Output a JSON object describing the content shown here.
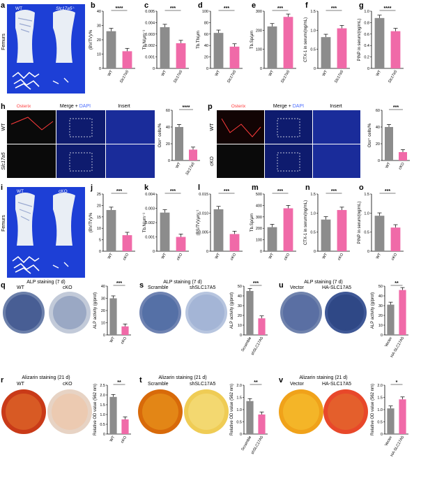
{
  "colors": {
    "wt": "#8c8c8c",
    "ko": "#f06aa8",
    "osterix": "#ff3b3b",
    "dapi": "#4a6cff"
  },
  "panels": {
    "a": {
      "letter": "a",
      "wt": "WT",
      "ko": "Slc17a5",
      "ko_sup": "-/-",
      "side": "Femurs"
    },
    "h": {
      "letter": "h",
      "title_osterix": "Osterix",
      "title_merge": "Merge + ",
      "title_dapi": "DAPI",
      "title_insert": "Insert",
      "row1": "WT",
      "row2": "Slc17a5"
    },
    "p": {
      "letter": "p",
      "title_osterix": "Osterix",
      "title_merge": "Merge + ",
      "title_dapi": "DAPI",
      "title_insert": "Insert",
      "row1": "WT",
      "row2": "cKO"
    },
    "i": {
      "letter": "i",
      "wt": "WT",
      "ko": "cKO",
      "side": "Femurs"
    },
    "q": {
      "letter": "q",
      "title": "ALP staining (7 d)",
      "left": "WT",
      "right": "cKO"
    },
    "s": {
      "letter": "s",
      "title": "ALP staining (7 d)",
      "left": "Scramble",
      "right": "shSLC17A5"
    },
    "u": {
      "letter": "u",
      "title": "ALP staining (7 d)",
      "left": "Vector",
      "right": "HA-SLC17A5"
    },
    "r": {
      "letter": "r",
      "title": "Alizarin staining (21 d)",
      "left": "WT",
      "right": "cKO"
    },
    "t": {
      "letter": "t",
      "title": "Alizarin staining (21 d)",
      "left": "Scramble",
      "right": "shSLC17A5"
    },
    "v": {
      "letter": "v",
      "title": "Alizarin staining (21 d)",
      "left": "Vector",
      "right": "HA-SLC17A5"
    }
  },
  "chart_data": [
    {
      "id": "b",
      "type": "bar",
      "categories": [
        "WT",
        "Slc17a5"
      ],
      "values": [
        26,
        12
      ],
      "ylim": [
        0,
        40
      ],
      "ticks": [
        "0",
        "10",
        "20",
        "30",
        "40"
      ],
      "ylabel": "(BV/TV)/%",
      "sig": "****"
    },
    {
      "id": "c",
      "type": "bar",
      "categories": [
        "WT",
        "Slc17a5"
      ],
      "values": [
        0.0036,
        0.0022
      ],
      "ylim": [
        0,
        0.005
      ],
      "ticks": [
        "0",
        "0.001",
        "0.002",
        "0.003",
        "0.004",
        "0.005"
      ],
      "ylabel": "Tb.N/μm⁻¹",
      "sig": "***"
    },
    {
      "id": "d",
      "type": "bar",
      "categories": [
        "WT",
        "Slc17a5"
      ],
      "values": [
        62,
        38
      ],
      "ylim": [
        0,
        100
      ],
      "ticks": [
        "0",
        "20",
        "40",
        "60",
        "80",
        "100"
      ],
      "ylabel": "Tb.Th/μm",
      "sig": "***"
    },
    {
      "id": "e",
      "type": "bar",
      "categories": [
        "WT",
        "Slc17a5"
      ],
      "values": [
        220,
        270
      ],
      "ylim": [
        0,
        300
      ],
      "ticks": [
        "0",
        "100",
        "200",
        "300"
      ],
      "ylabel": "Tb.Sp/μm",
      "sig": "***"
    },
    {
      "id": "f",
      "type": "bar",
      "categories": [
        "WT",
        "Slc17a5"
      ],
      "values": [
        0.82,
        1.05
      ],
      "ylim": [
        0,
        1.5
      ],
      "ticks": [
        "0",
        "0.5",
        "1.0",
        "1.5"
      ],
      "ylabel": "CTX-1 in serum/(ng/mL)",
      "sig": "***"
    },
    {
      "id": "g",
      "type": "bar",
      "categories": [
        "WT",
        "Slc17a5"
      ],
      "values": [
        0.88,
        0.65
      ],
      "ylim": [
        0,
        1.0
      ],
      "ticks": [
        "0",
        "0.2",
        "0.4",
        "0.6",
        "0.8",
        "1.0"
      ],
      "ylabel": "PINP in serum/(ng/mL)",
      "sig": "****"
    },
    {
      "id": "h2",
      "type": "bar",
      "categories": [
        "WT",
        "Slc17a5"
      ],
      "values": [
        40,
        13
      ],
      "ylim": [
        0,
        60
      ],
      "ticks": [
        "0",
        "20",
        "40",
        "60"
      ],
      "ylabel": "Osx⁺ cells/%",
      "sig": "****"
    },
    {
      "id": "p2",
      "type": "bar",
      "categories": [
        "WT",
        "cKO"
      ],
      "values": [
        40,
        10
      ],
      "ylim": [
        0,
        60
      ],
      "ticks": [
        "0",
        "20",
        "40",
        "60"
      ],
      "ylabel": "Osx⁺ cells/%",
      "sig": "***"
    },
    {
      "id": "j",
      "type": "bar",
      "categories": [
        "WT",
        "cKO"
      ],
      "values": [
        18,
        7
      ],
      "ylim": [
        0,
        25
      ],
      "ticks": [
        "0",
        "5",
        "10",
        "15",
        "20",
        "25"
      ],
      "ylabel": "(BV/TV)/%",
      "sig": "***"
    },
    {
      "id": "k",
      "type": "bar",
      "categories": [
        "WT",
        "cKO"
      ],
      "values": [
        0.0027,
        0.001
      ],
      "ylim": [
        0,
        0.004
      ],
      "ticks": [
        "0",
        "0.001",
        "0.002",
        "0.003",
        "0.004"
      ],
      "ylabel": "Tb.N/μm⁻¹",
      "sig": "***"
    },
    {
      "id": "l",
      "type": "bar",
      "categories": [
        "WT",
        "cKO"
      ],
      "values": [
        0.011,
        0.0045
      ],
      "ylim": [
        0,
        0.015
      ],
      "ticks": [
        "0",
        "0.005",
        "0.010",
        "0.015"
      ],
      "ylabel": "(BS/TV)/μm⁻¹",
      "sig": "***"
    },
    {
      "id": "m",
      "type": "bar",
      "categories": [
        "WT",
        "cKO"
      ],
      "values": [
        210,
        375
      ],
      "ylim": [
        0,
        500
      ],
      "ticks": [
        "0",
        "100",
        "200",
        "300",
        "400",
        "500"
      ],
      "ylabel": "Tb.Sp/μm",
      "sig": "***"
    },
    {
      "id": "n",
      "type": "bar",
      "categories": [
        "WT",
        "cKO"
      ],
      "values": [
        0.83,
        1.08
      ],
      "ylim": [
        0,
        1.5
      ],
      "ticks": [
        "0",
        "0.5",
        "1.0",
        "1.5"
      ],
      "ylabel": "CTX-1 in serum/(ng/mL)",
      "sig": "***"
    },
    {
      "id": "o",
      "type": "bar",
      "categories": [
        "WT",
        "cKO"
      ],
      "values": [
        0.93,
        0.62
      ],
      "ylim": [
        0,
        1.5
      ],
      "ticks": [
        "0",
        "0.5",
        "1.0",
        "1.5"
      ],
      "ylabel": "PINP in serum/(ng/mL)",
      "sig": "***"
    },
    {
      "id": "q2",
      "type": "bar",
      "categories": [
        "WT",
        "cKO"
      ],
      "values": [
        30,
        7
      ],
      "ylim": [
        0,
        40
      ],
      "ticks": [
        "0",
        "10",
        "20",
        "30",
        "40"
      ],
      "ylabel": "ALP activity (g/prot)",
      "sig": "***"
    },
    {
      "id": "s2",
      "type": "bar",
      "categories": [
        "Scramble",
        "shSLC17A5"
      ],
      "values": [
        45,
        17
      ],
      "ylim": [
        0,
        50
      ],
      "ticks": [
        "0",
        "10",
        "20",
        "30",
        "40",
        "50"
      ],
      "ylabel": "ALP activity (g/prot)",
      "sig": "***"
    },
    {
      "id": "u2",
      "type": "bar",
      "categories": [
        "Vector",
        "HA-SLC17A5"
      ],
      "values": [
        31,
        46
      ],
      "ylim": [
        0,
        50
      ],
      "ticks": [
        "0",
        "10",
        "20",
        "30",
        "40",
        "50"
      ],
      "ylabel": "ALP activity (g/prot)",
      "sig": "**"
    },
    {
      "id": "r2",
      "type": "bar",
      "categories": [
        "WT",
        "cKO"
      ],
      "values": [
        1.9,
        0.75
      ],
      "ylim": [
        0,
        2.5
      ],
      "ticks": [
        "0",
        "0.5",
        "1.0",
        "1.5",
        "2.0",
        "2.5"
      ],
      "ylabel": "Relative OD value (562 nm)",
      "sig": "**"
    },
    {
      "id": "t2",
      "type": "bar",
      "categories": [
        "Scramble",
        "shSLC17A5"
      ],
      "values": [
        1.35,
        0.8
      ],
      "ylim": [
        0,
        2.0
      ],
      "ticks": [
        "0",
        "0.5",
        "1.0",
        "1.5",
        "2.0"
      ],
      "ylabel": "Relative OD value (562 nm)",
      "sig": "**"
    },
    {
      "id": "v2",
      "type": "bar",
      "categories": [
        "Vector",
        "HA-SLC17A5"
      ],
      "values": [
        1.05,
        1.42
      ],
      "ylim": [
        0,
        2.0
      ],
      "ticks": [
        "0",
        "0.5",
        "1.0",
        "1.5",
        "2.0"
      ],
      "ylabel": "Relative OD value (562 nm)",
      "sig": "*"
    }
  ]
}
